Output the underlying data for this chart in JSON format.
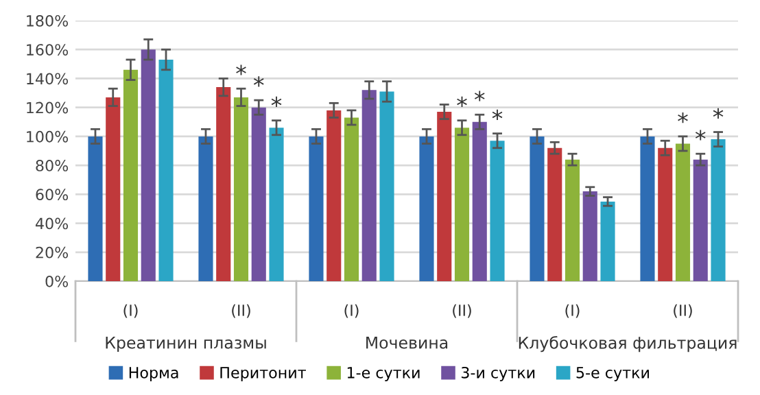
{
  "chart_data": {
    "type": "bar",
    "categories": [
      "(I)",
      "(II)",
      "(I)",
      "(II)",
      "(I)",
      "(II)"
    ],
    "annotations": [
      "Креатинин плазмы",
      "Мочевина",
      "Клубочковая фильтрация"
    ],
    "series": [
      {
        "name": "Норма",
        "color": "#2e6db4",
        "values": [
          100,
          100,
          100,
          100,
          100,
          100
        ],
        "errors": [
          5,
          5,
          5,
          5,
          5,
          5
        ]
      },
      {
        "name": "Перитонит",
        "color": "#c0393b",
        "values": [
          127,
          134,
          118,
          117,
          92,
          92
        ],
        "errors": [
          6,
          6,
          5,
          5,
          4,
          5
        ]
      },
      {
        "name": "1-е сутки",
        "color": "#8db33a",
        "values": [
          146,
          127,
          113,
          106,
          84,
          95
        ],
        "errors": [
          7,
          6,
          5,
          5,
          4,
          5
        ],
        "value_labels": [
          null,
          "*",
          null,
          "*",
          null,
          "*"
        ]
      },
      {
        "name": "3-и сутки",
        "color": "#7052a0",
        "values": [
          160,
          120,
          132,
          110,
          62,
          84
        ],
        "errors": [
          7,
          5,
          6,
          5,
          3,
          4
        ],
        "value_labels": [
          null,
          "*",
          null,
          "*",
          null,
          "*"
        ]
      },
      {
        "name": "5-е сутки",
        "color": "#2ba6c6",
        "values": [
          153,
          106,
          131,
          97,
          55,
          98
        ],
        "errors": [
          7,
          5,
          7,
          5,
          3,
          5
        ],
        "value_labels": [
          null,
          "*",
          null,
          "*",
          null,
          "*"
        ]
      }
    ],
    "ylim": [
      0,
      180
    ],
    "yticks": [
      {
        "value": 0,
        "label": "0%"
      },
      {
        "value": 20,
        "label": "20%"
      },
      {
        "value": 40,
        "label": "40%"
      },
      {
        "value": 60,
        "label": "60%"
      },
      {
        "value": 80,
        "label": "80%"
      },
      {
        "value": 100,
        "label": "100%"
      },
      {
        "value": 120,
        "label": "120%"
      },
      {
        "value": 140,
        "label": "140%"
      },
      {
        "value": 160,
        "label": "160%"
      },
      {
        "value": 180,
        "label": "180%"
      }
    ],
    "grid": "y",
    "legend": "bottom"
  }
}
